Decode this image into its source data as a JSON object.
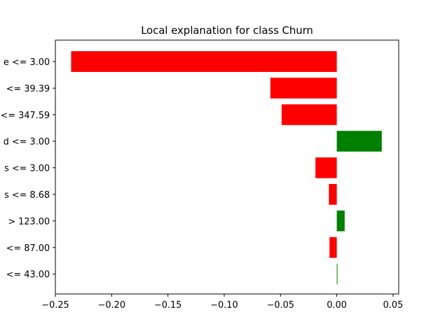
{
  "chart_data": {
    "type": "bar",
    "orientation": "horizontal",
    "title": "Local explanation for class Churn",
    "xlabel": "",
    "ylabel": "",
    "xlim": [
      -0.25,
      0.055
    ],
    "xticks": [
      -0.25,
      -0.2,
      -0.15,
      -0.1,
      -0.05,
      0.0,
      0.05
    ],
    "xtick_labels": [
      "−0.25",
      "−0.20",
      "−0.15",
      "−0.10",
      "−0.05",
      "0.00",
      "0.05"
    ],
    "grid": false,
    "categories": [
      "e <= 3.00",
      "<= 39.39",
      "<= 347.59",
      "d <= 3.00",
      "s <= 3.00",
      "s <= 8.68",
      "> 123.00",
      "<= 87.00",
      "<= 43.00"
    ],
    "values": [
      -0.236,
      -0.059,
      -0.049,
      0.04,
      -0.019,
      -0.007,
      0.007,
      -0.0065,
      0.0005
    ],
    "colors": {
      "negative": "#ff0000",
      "positive": "#008000"
    }
  }
}
